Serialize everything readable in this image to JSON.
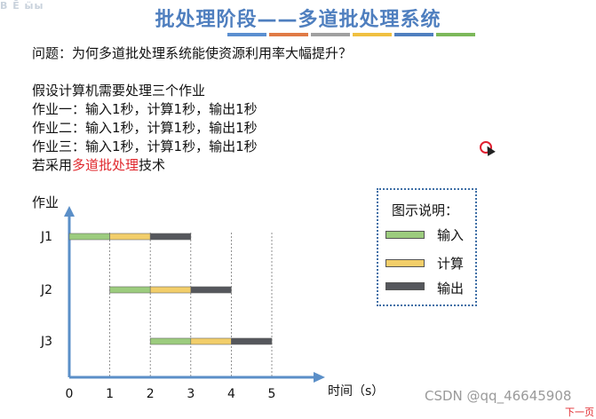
{
  "corner_logo": "B Ē  ӹы",
  "title": "批处理阶段——多道批处理系统",
  "title_bar_colors": [
    "#5b8fd0",
    "#e07a45",
    "#a0a0a0",
    "#f0c040",
    "#4f7fbf",
    "#7cb85a"
  ],
  "question": "问题：为何多道批处理系统能使资源利用率大幅提升？",
  "assumption": "假设计算机需要处理三个作业",
  "jobs_text": [
    "作业一：输入1秒，计算1秒，输出1秒",
    "作业二：输入1秒，计算1秒，输出1秒",
    "作业三：输入1秒，计算1秒，输出1秒"
  ],
  "technique_prefix": "若采用",
  "technique_highlight": "多道批处理",
  "technique_suffix": "技术",
  "watermark": "CSDN @qq_46645908",
  "edge_text": "下一页",
  "legend": {
    "title": "图示说明：",
    "items": [
      {
        "label": "输入",
        "color": "#9ccc7e"
      },
      {
        "label": "计算",
        "color": "#f2ce6a"
      },
      {
        "label": "输出",
        "color": "#55575c"
      }
    ]
  },
  "chart_data": {
    "type": "bar",
    "ylabel": "作业",
    "xlabel": "时间（s）",
    "x_ticks": [
      0,
      1,
      2,
      3,
      4,
      5
    ],
    "xlim": [
      0,
      5.5
    ],
    "categories": [
      "J1",
      "J2",
      "J3"
    ],
    "segments": [
      {
        "job": "J1",
        "phase": "输入",
        "start": 0,
        "end": 1
      },
      {
        "job": "J1",
        "phase": "计算",
        "start": 1,
        "end": 2
      },
      {
        "job": "J1",
        "phase": "输出",
        "start": 2,
        "end": 3
      },
      {
        "job": "J2",
        "phase": "输入",
        "start": 1,
        "end": 2
      },
      {
        "job": "J2",
        "phase": "计算",
        "start": 2,
        "end": 3
      },
      {
        "job": "J2",
        "phase": "输出",
        "start": 3,
        "end": 4
      },
      {
        "job": "J3",
        "phase": "输入",
        "start": 2,
        "end": 3
      },
      {
        "job": "J3",
        "phase": "计算",
        "start": 3,
        "end": 4
      },
      {
        "job": "J3",
        "phase": "输出",
        "start": 4,
        "end": 5
      }
    ],
    "phase_colors": {
      "输入": "#9ccc7e",
      "计算": "#f2ce6a",
      "输出": "#55575c"
    },
    "axis_color": "#5b8fc8"
  }
}
